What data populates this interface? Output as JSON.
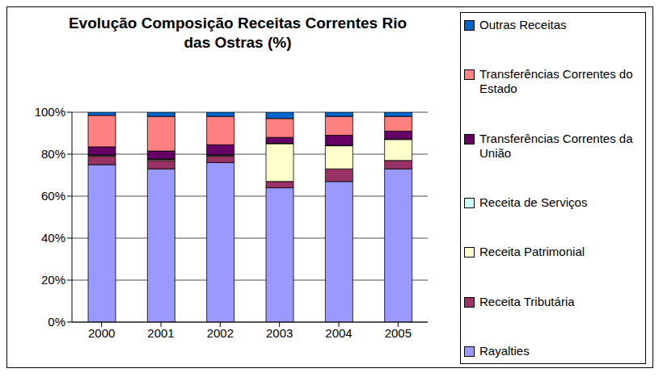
{
  "chart_data": {
    "type": "bar",
    "title": "Evolução Composição Receitas Correntes Rio das Ostras (%)",
    "categories": [
      "2000",
      "2001",
      "2002",
      "2003",
      "2004",
      "2005"
    ],
    "stacked": true,
    "grid": true,
    "legend": "right",
    "ylim": [
      0,
      100
    ],
    "yticks": [
      {
        "value": 0,
        "label": "0%"
      },
      {
        "value": 20,
        "label": "20%"
      },
      {
        "value": 40,
        "label": "40%"
      },
      {
        "value": 60,
        "label": "60%"
      },
      {
        "value": 80,
        "label": "80%"
      },
      {
        "value": 100,
        "label": "100%"
      }
    ],
    "series": [
      {
        "name": "Rayalties",
        "color": "#9999ff",
        "values": [
          75,
          73,
          76,
          64,
          67,
          73
        ]
      },
      {
        "name": "Receita Tributária",
        "color": "#993366",
        "values": [
          4,
          4,
          3,
          3,
          6,
          4
        ]
      },
      {
        "name": "Receita Patrimonial",
        "color": "#ffffcc",
        "values": [
          0.5,
          0.5,
          0.5,
          18,
          11,
          10
        ]
      },
      {
        "name": "Receita de Serviços",
        "color": "#ccffff",
        "values": [
          0.2,
          0.2,
          0.2,
          0.2,
          0.2,
          0.2
        ]
      },
      {
        "name": "Transferências Correntes da União",
        "color": "#660066",
        "values": [
          3.8,
          3.8,
          4.8,
          2.8,
          4.8,
          3.8
        ]
      },
      {
        "name": "Transferências Correntes do Estado",
        "color": "#ff8080",
        "values": [
          15,
          16.5,
          13.5,
          9,
          9,
          7
        ]
      },
      {
        "name": "Outras Receitas",
        "color": "#0066cc",
        "values": [
          1.5,
          2,
          2,
          3,
          2,
          2
        ]
      }
    ]
  }
}
